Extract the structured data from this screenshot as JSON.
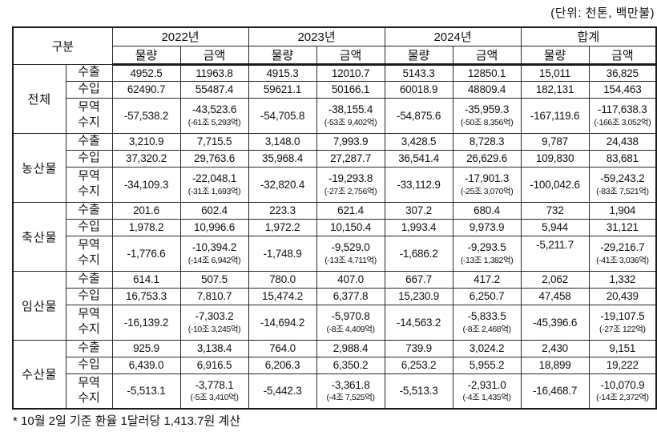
{
  "colors": {
    "background": "#ffffff",
    "text": "#111111",
    "border": "#2a2a2a"
  },
  "unit_label": "(단위: 천톤, 백만불)",
  "footnote": "* 10월 2일 기준 환율 1달러당 1,413.7원 계산",
  "table": {
    "corner_header": "구분",
    "col_groups": [
      "2022년",
      "2023년",
      "2024년",
      "합계"
    ],
    "sub_headers": [
      "물량",
      "금액"
    ],
    "row_labels": {
      "export": "수출",
      "import": "수입",
      "balance_lines": [
        "무역",
        "수지"
      ]
    },
    "groups": [
      {
        "name": "전체",
        "export": [
          "4952.5",
          "11963.8",
          "4915.3",
          "12010.7",
          "5143.3",
          "12850.1",
          "15,011",
          "36,825"
        ],
        "import": [
          "62490.7",
          "55487.4",
          "59621.1",
          "50166.1",
          "60018.9",
          "48809.4",
          "182,131",
          "154,463"
        ],
        "balance": [
          {
            "v": "-57,538.2"
          },
          {
            "v": "-43,523.6",
            "sub": "(-61조 5,293억)"
          },
          {
            "v": "-54,705.8"
          },
          {
            "v": "-38,155.4",
            "sub": "(-53조 9,402억)"
          },
          {
            "v": "-54,875.6"
          },
          {
            "v": "-35,959.3",
            "sub": "(-50조 8,356억)"
          },
          {
            "v": "-167,119.6"
          },
          {
            "v": "-117,638.3",
            "sub": "(-166조 3,052억)"
          }
        ]
      },
      {
        "name": "농산물",
        "export": [
          "3,210.9",
          "7,715.5",
          "3,148.0",
          "7,993.9",
          "3,428.5",
          "8,728.3",
          "9,787",
          "24,438"
        ],
        "import": [
          "37,320.2",
          "29,763.6",
          "35,968.4",
          "27,287.7",
          "36,541.4",
          "26,629.6",
          "109,830",
          "83,681"
        ],
        "balance": [
          {
            "v": "-34,109.3"
          },
          {
            "v": "-22,048.1",
            "sub": "(-31조 1,693억)"
          },
          {
            "v": "-32,820.4"
          },
          {
            "v": "-19,293.8",
            "sub": "(-27조 2,756억)"
          },
          {
            "v": "-33,112.9"
          },
          {
            "v": "-17,901.3",
            "sub": "(-25조 3,070억)"
          },
          {
            "v": "-100,042.6"
          },
          {
            "v": "-59,243.2",
            "sub": "(-83조 7,521억)"
          }
        ]
      },
      {
        "name": "축산물",
        "export": [
          "201.6",
          "602.4",
          "223.3",
          "621.4",
          "307.2",
          "680.4",
          "732",
          "1,904"
        ],
        "import": [
          "1,978.2",
          "10,996.6",
          "1,972.2",
          "10,150.4",
          "1,993.4",
          "9,973.9",
          "5,944",
          "31,121"
        ],
        "balance": [
          {
            "v": "-1,776.6"
          },
          {
            "v": "-10,394.2",
            "sub": "(-14조 6,942억)"
          },
          {
            "v": "-1,748.9"
          },
          {
            "v": "-9,529.0",
            "sub": "(-13조 4,711억)"
          },
          {
            "v": "-1,686.2"
          },
          {
            "v": "-9,293.5",
            "sub": "(-13조 1,382억)"
          },
          {
            "v": "-5,211.7",
            "align": "top"
          },
          {
            "v": "-29,216.7",
            "sub": "(-41조 3,036억)"
          }
        ]
      },
      {
        "name": "임산물",
        "export": [
          "614.1",
          "507.5",
          "780.0",
          "407.0",
          "667.7",
          "417.2",
          "2,062",
          "1,332"
        ],
        "import": [
          "16,753.3",
          "7,810.7",
          "15,474.2",
          "6,377.8",
          "15,230.9",
          "6,250.7",
          "47,458",
          "20,439"
        ],
        "balance": [
          {
            "v": "-16,139.2"
          },
          {
            "v": "-7,303.2",
            "sub": "(-10조 3,245억)"
          },
          {
            "v": "-14,694.2"
          },
          {
            "v": "-5,970.8",
            "sub": "(-8조 4,409억)"
          },
          {
            "v": "-14,563.2"
          },
          {
            "v": "-5,833.5",
            "sub": "(-8조 2,468억)"
          },
          {
            "v": "-45,396.6"
          },
          {
            "v": "-19,107.5",
            "sub": "(-27조 122억)"
          }
        ]
      },
      {
        "name": "수산물",
        "export": [
          "925.9",
          "3,138.4",
          "764.0",
          "2,988.4",
          "739.9",
          "3,024.2",
          "2,430",
          "9,151"
        ],
        "import": [
          "6,439.0",
          "6,916.5",
          "6,206.3",
          "6,350.2",
          "6,253.2",
          "5,955.2",
          "18,899",
          "19,222"
        ],
        "balance": [
          {
            "v": "-5,513.1"
          },
          {
            "v": "-3,778.1",
            "sub": "(-5조 3,410억)"
          },
          {
            "v": "-5,442.3"
          },
          {
            "v": "-3,361.8",
            "sub": "(-4조 7,525억)"
          },
          {
            "v": "-5,513.3"
          },
          {
            "v": "-2,931.0",
            "sub": "(-4조 1,435억)"
          },
          {
            "v": "-16,468.7"
          },
          {
            "v": "-10,070.9",
            "sub": "(-14조 2,372억)"
          }
        ]
      }
    ]
  }
}
